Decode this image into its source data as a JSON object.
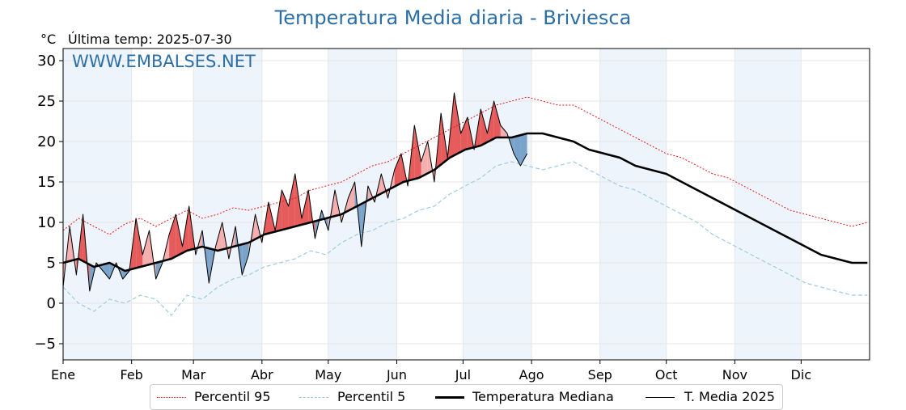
{
  "header": {
    "title": "Temperatura Media diaria - Briviesca",
    "unit": "°C",
    "last_temp_label": "Última temp: 2025-07-30",
    "watermark": "WWW.EMBALSES.NET"
  },
  "legend": {
    "p95": "Percentil 95",
    "p5": "Percentil 5",
    "median": "Temperatura Mediana",
    "current": "T. Media 2025"
  },
  "colors": {
    "title": "#2c6fa6",
    "p95": "#e31a1c",
    "p5": "#9ecae1",
    "median": "#000000",
    "current": "#000000",
    "above_fill": "#f4a6a6",
    "above_fill_strong": "#e34a4a",
    "below_fill": "#6b9ac4",
    "month_band": "#eef4fb"
  },
  "chart_data": {
    "type": "line",
    "title": "Temperatura Media diaria - Briviesca",
    "ylabel": "°C",
    "ylim": [
      -7,
      31.5
    ],
    "xlim": [
      1,
      366
    ],
    "yticks": [
      -5,
      0,
      5,
      10,
      15,
      20,
      25,
      30
    ],
    "month_labels": [
      "Ene",
      "Feb",
      "Mar",
      "Abr",
      "May",
      "Jun",
      "Jul",
      "Ago",
      "Sep",
      "Oct",
      "Nov",
      "Dic"
    ],
    "month_start_days": [
      1,
      32,
      60,
      91,
      121,
      152,
      182,
      213,
      244,
      274,
      305,
      335
    ],
    "shaded_months": [
      "Ene",
      "Mar",
      "May",
      "Jul",
      "Sep",
      "Nov"
    ],
    "grid": true,
    "legend_position": "bottom",
    "series": [
      {
        "name": "Percentil 95",
        "style": "dotted",
        "x": [
          1,
          8,
          15,
          22,
          29,
          36,
          43,
          50,
          57,
          64,
          71,
          78,
          85,
          92,
          99,
          106,
          113,
          120,
          127,
          134,
          141,
          148,
          155,
          162,
          169,
          176,
          183,
          190,
          197,
          204,
          211,
          218,
          225,
          232,
          239,
          246,
          253,
          260,
          267,
          274,
          281,
          288,
          295,
          302,
          309,
          316,
          323,
          330,
          337,
          344,
          351,
          358,
          365
        ],
        "values": [
          9.0,
          10.5,
          9.5,
          8.5,
          9.8,
          10.5,
          9.5,
          10.5,
          11.5,
          10.5,
          11.0,
          11.8,
          11.5,
          12.0,
          12.5,
          13.0,
          14.0,
          14.5,
          15.0,
          16.0,
          17.0,
          17.5,
          18.5,
          19.5,
          20.5,
          21.5,
          22.5,
          23.5,
          24.5,
          25.0,
          25.5,
          25.0,
          24.5,
          24.5,
          23.5,
          22.5,
          21.5,
          20.5,
          19.5,
          18.5,
          18.0,
          17.0,
          16.0,
          15.5,
          14.5,
          13.5,
          12.5,
          11.5,
          11.0,
          10.5,
          10.0,
          9.5,
          10.0
        ]
      },
      {
        "name": "Percentil 5",
        "style": "dashed",
        "x": [
          1,
          8,
          15,
          22,
          29,
          36,
          43,
          50,
          57,
          64,
          71,
          78,
          85,
          92,
          99,
          106,
          113,
          120,
          127,
          134,
          141,
          148,
          155,
          162,
          169,
          176,
          183,
          190,
          197,
          204,
          211,
          218,
          225,
          232,
          239,
          246,
          253,
          260,
          267,
          274,
          281,
          288,
          295,
          302,
          309,
          316,
          323,
          330,
          337,
          344,
          351,
          358,
          365
        ],
        "values": [
          2.0,
          0.0,
          -1.0,
          0.5,
          0.0,
          1.0,
          0.5,
          -1.5,
          1.0,
          0.5,
          2.0,
          3.0,
          3.5,
          4.5,
          5.0,
          5.5,
          6.5,
          6.0,
          7.5,
          8.5,
          9.0,
          10.0,
          10.5,
          11.5,
          12.0,
          13.5,
          14.5,
          15.5,
          17.0,
          17.5,
          17.0,
          16.5,
          17.0,
          17.5,
          16.5,
          15.5,
          14.5,
          14.0,
          13.0,
          12.0,
          11.0,
          10.0,
          8.5,
          7.5,
          6.5,
          5.5,
          4.5,
          3.5,
          2.5,
          2.0,
          1.5,
          1.0,
          1.0
        ]
      },
      {
        "name": "Temperatura Mediana",
        "style": "solid-thick",
        "x": [
          1,
          8,
          15,
          22,
          29,
          36,
          43,
          50,
          57,
          64,
          71,
          78,
          85,
          92,
          99,
          106,
          113,
          120,
          127,
          134,
          141,
          148,
          155,
          162,
          169,
          176,
          183,
          190,
          197,
          204,
          211,
          218,
          225,
          232,
          239,
          246,
          253,
          260,
          267,
          274,
          281,
          288,
          295,
          302,
          309,
          316,
          323,
          330,
          337,
          344,
          351,
          358,
          365
        ],
        "values": [
          5.0,
          5.5,
          4.5,
          5.0,
          4.0,
          4.5,
          5.0,
          5.5,
          6.5,
          7.0,
          6.5,
          7.0,
          7.5,
          8.5,
          9.0,
          9.5,
          10.0,
          10.5,
          11.0,
          12.0,
          13.0,
          14.0,
          15.0,
          15.5,
          16.5,
          18.0,
          19.0,
          19.5,
          20.5,
          20.5,
          21.0,
          21.0,
          20.5,
          20.0,
          19.0,
          18.5,
          18.0,
          17.0,
          16.5,
          16.0,
          15.0,
          14.0,
          13.0,
          12.0,
          11.0,
          10.0,
          9.0,
          8.0,
          7.0,
          6.0,
          5.5,
          5.0,
          5.0
        ]
      },
      {
        "name": "T. Media 2025",
        "style": "solid-thin",
        "x": [
          1,
          4,
          7,
          10,
          13,
          16,
          19,
          22,
          25,
          28,
          31,
          34,
          37,
          40,
          43,
          46,
          49,
          52,
          55,
          58,
          61,
          64,
          67,
          70,
          73,
          76,
          79,
          82,
          85,
          88,
          91,
          94,
          97,
          100,
          103,
          106,
          109,
          112,
          115,
          118,
          121,
          124,
          127,
          130,
          133,
          136,
          139,
          142,
          145,
          148,
          151,
          154,
          157,
          160,
          163,
          166,
          169,
          172,
          175,
          178,
          181,
          184,
          187,
          190,
          193,
          196,
          199,
          202,
          205,
          208,
          211
        ],
        "values": [
          2.0,
          9.5,
          3.5,
          11.0,
          1.5,
          5.0,
          4.0,
          3.0,
          5.0,
          3.0,
          4.0,
          10.5,
          6.0,
          9.0,
          3.0,
          5.0,
          8.5,
          11.0,
          7.0,
          12.0,
          6.0,
          9.0,
          2.5,
          7.0,
          10.0,
          5.5,
          9.5,
          3.5,
          6.0,
          11.0,
          7.5,
          12.5,
          9.0,
          14.0,
          12.0,
          16.0,
          10.5,
          14.0,
          8.0,
          11.5,
          9.0,
          14.0,
          10.0,
          13.0,
          15.0,
          7.0,
          14.5,
          12.5,
          16.0,
          13.0,
          16.5,
          18.5,
          14.5,
          22.0,
          17.5,
          20.0,
          15.0,
          23.5,
          18.0,
          26.0,
          21.0,
          23.0,
          19.0,
          24.0,
          21.0,
          25.0,
          22.0,
          21.0,
          18.5,
          17.0,
          18.5
        ]
      }
    ]
  }
}
